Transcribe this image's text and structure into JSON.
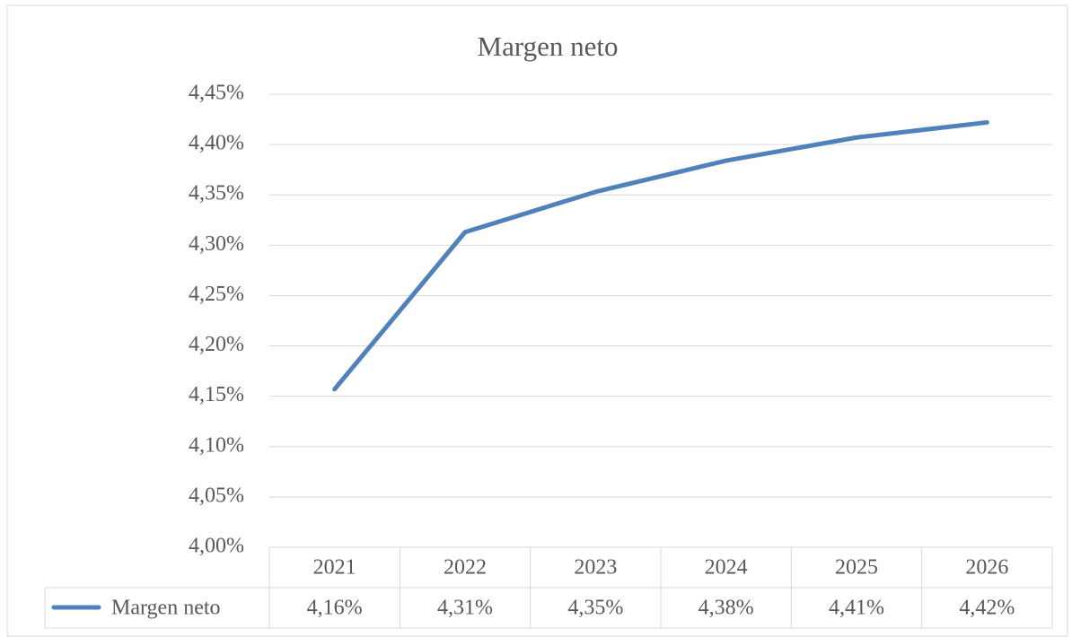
{
  "chart_data": {
    "type": "line",
    "title": "Margen neto",
    "categories": [
      "2021",
      "2022",
      "2023",
      "2024",
      "2025",
      "2026"
    ],
    "series": [
      {
        "name": "Margen neto",
        "color": "#4f81bd",
        "values": [
          4.157,
          4.313,
          4.353,
          4.384,
          4.407,
          4.422
        ],
        "value_labels": [
          "4,16%",
          "4,31%",
          "4,35%",
          "4,38%",
          "4,41%",
          "4,42%"
        ]
      }
    ],
    "ylim": [
      4.0,
      4.45
    ],
    "yticks": [
      {
        "value": 4.0,
        "label": "4,00%"
      },
      {
        "value": 4.05,
        "label": "4,05%"
      },
      {
        "value": 4.1,
        "label": "4,10%"
      },
      {
        "value": 4.15,
        "label": "4,15%"
      },
      {
        "value": 4.2,
        "label": "4,20%"
      },
      {
        "value": 4.25,
        "label": "4,25%"
      },
      {
        "value": 4.3,
        "label": "4,30%"
      },
      {
        "value": 4.35,
        "label": "4,35%"
      },
      {
        "value": 4.4,
        "label": "4,40%"
      },
      {
        "value": 4.45,
        "label": "4,45%"
      }
    ],
    "grid": true,
    "data_table": true
  }
}
